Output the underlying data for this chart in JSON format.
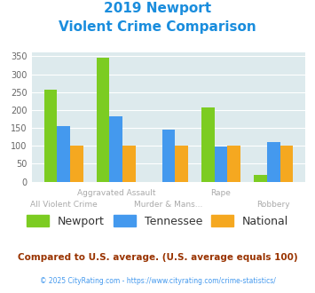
{
  "title_line1": "2019 Newport",
  "title_line2": "Violent Crime Comparison",
  "categories": [
    "All Violent Crime",
    "Aggravated Assault",
    "Murder & Mans...",
    "Rape",
    "Robbery"
  ],
  "newport": [
    257,
    345,
    0,
    208,
    18
  ],
  "tennessee": [
    155,
    182,
    146,
    97,
    110
  ],
  "national": [
    100,
    100,
    100,
    100,
    100
  ],
  "colors": {
    "newport": "#7ccc22",
    "tennessee": "#4499ee",
    "national": "#f5a820"
  },
  "ylim": [
    0,
    360
  ],
  "yticks": [
    0,
    50,
    100,
    150,
    200,
    250,
    300,
    350
  ],
  "top_labels": [
    "",
    "Aggravated Assault",
    "",
    "Rape",
    ""
  ],
  "bottom_labels": [
    "All Violent Crime",
    "",
    "Murder & Mans...",
    "",
    "Robbery"
  ],
  "background_color": "#ddeaed",
  "title_color": "#1a8ddd",
  "footer_text": "Compared to U.S. average. (U.S. average equals 100)",
  "footer_color": "#993300",
  "copyright_text": "© 2025 CityRating.com - https://www.cityrating.com/crime-statistics/",
  "copyright_color": "#4499ee",
  "label_color": "#aaaaaa",
  "legend_labels": [
    "Newport",
    "Tennessee",
    "National"
  ],
  "legend_text_color": "#333333"
}
